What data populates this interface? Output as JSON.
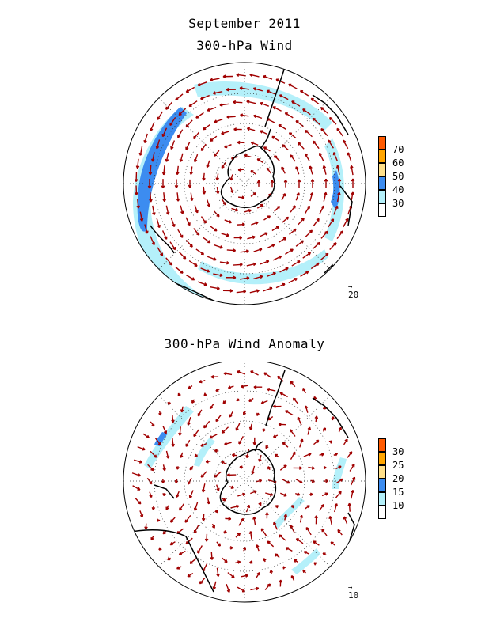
{
  "titles": {
    "line1": "September 2011",
    "line2": "300-hPa Wind",
    "line3": "300-hPa Wind Anomaly"
  },
  "map_wind": {
    "colorbar": {
      "labels": [
        "70",
        "60",
        "50",
        "40",
        "30"
      ],
      "colors": [
        "#ff5a00",
        "#ffa500",
        "#ffe08a",
        "#3c8cf0",
        "#b4f0fa",
        "#ffffff"
      ]
    },
    "reference_vector": "20",
    "arrow_color": "#a00000"
  },
  "map_anomaly": {
    "colorbar": {
      "labels": [
        "30",
        "25",
        "20",
        "15",
        "10"
      ],
      "colors": [
        "#ff5a00",
        "#ffa500",
        "#ffe08a",
        "#3c8cf0",
        "#b4f0fa",
        "#ffffff"
      ]
    },
    "reference_vector": "10",
    "arrow_color": "#a00000"
  }
}
